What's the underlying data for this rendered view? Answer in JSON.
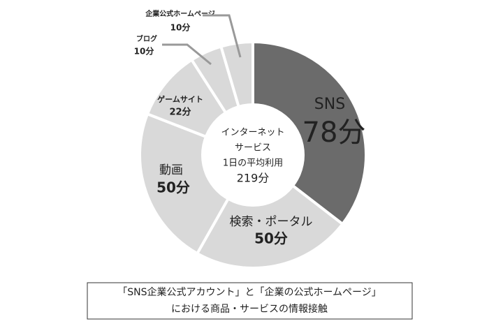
{
  "chart_data": {
    "type": "donut",
    "categories": [
      "SNS",
      "検索・ポータル",
      "動画",
      "ゲームサイト",
      "ブログ",
      "企業公式ホームページ"
    ],
    "values": [
      78,
      50,
      50,
      22,
      10,
      10
    ],
    "value_labels": [
      "78分",
      "50分",
      "50分",
      "22分",
      "10分",
      "10分"
    ],
    "colors": [
      "#6b6b6b",
      "#d9d9d9",
      "#d9d9d9",
      "#d9d9d9",
      "#d9d9d9",
      "#d9d9d9"
    ],
    "center_lines": [
      "インターネット",
      "サービス",
      "1日の平均利用",
      "219分"
    ],
    "caption_lines": [
      "「SNS企業公式アカウント」と「企業の公式ホームページ」",
      "における商品・サービスの情報接触"
    ]
  }
}
